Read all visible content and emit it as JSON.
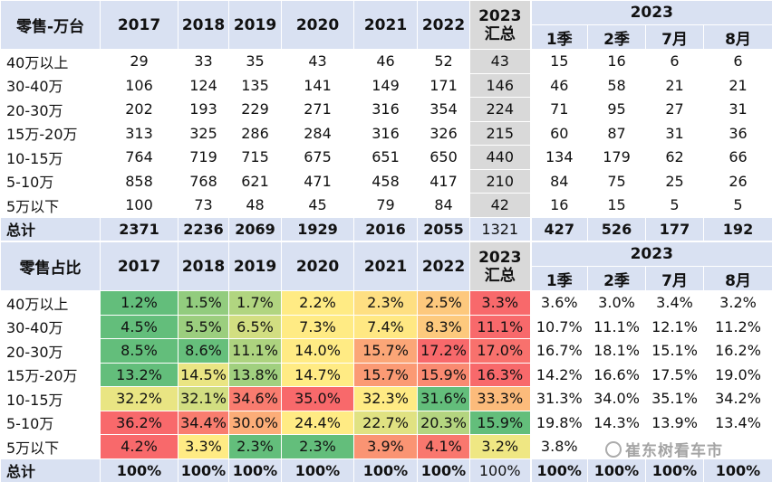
{
  "top": {
    "corner": "零售-万台",
    "years": [
      2017,
      2018,
      2019,
      2020,
      2021,
      2022
    ],
    "summary": [
      "2023",
      "汇总"
    ],
    "group": "2023",
    "sub": [
      "1季",
      "2季",
      "7月",
      "8月"
    ],
    "rows": [
      {
        "label": "40万以上",
        "cells": [
          29,
          33,
          35,
          43,
          46,
          52,
          43,
          15,
          16,
          6,
          6
        ]
      },
      {
        "label": "30-40万",
        "cells": [
          106,
          124,
          135,
          141,
          149,
          171,
          146,
          46,
          58,
          21,
          21
        ]
      },
      {
        "label": "20-30万",
        "cells": [
          202,
          193,
          229,
          271,
          316,
          354,
          224,
          71,
          95,
          27,
          31
        ]
      },
      {
        "label": "15万-20万",
        "cells": [
          313,
          325,
          286,
          284,
          316,
          326,
          215,
          60,
          87,
          31,
          36
        ]
      },
      {
        "label": "10-15万",
        "cells": [
          764,
          719,
          715,
          675,
          651,
          650,
          440,
          134,
          179,
          62,
          66
        ]
      },
      {
        "label": "5-10万",
        "cells": [
          858,
          768,
          621,
          471,
          458,
          417,
          210,
          84,
          75,
          25,
          26
        ]
      },
      {
        "label": "5万以下",
        "cells": [
          100,
          73,
          48,
          45,
          79,
          84,
          42,
          16,
          15,
          5,
          5
        ]
      },
      {
        "label": "总计",
        "cells": [
          2371,
          2236,
          2069,
          1929,
          2016,
          2055,
          1321,
          427,
          526,
          177,
          192
        ]
      }
    ]
  },
  "bottom": {
    "corner": "零售占比",
    "years": [
      2017,
      2018,
      2019,
      2020,
      2021,
      2022
    ],
    "summary": [
      "2023",
      "汇总"
    ],
    "group": "2023",
    "sub": [
      "1季",
      "2季",
      "7月",
      "8月"
    ],
    "rows": [
      {
        "label": "40万以上",
        "cells": [
          "1.2%",
          "1.5%",
          "1.7%",
          "2.2%",
          "2.3%",
          "2.5%",
          "3.3%",
          "3.6%",
          "3.0%",
          "3.4%",
          "3.2%"
        ]
      },
      {
        "label": "30-40万",
        "cells": [
          "4.5%",
          "5.5%",
          "6.5%",
          "7.3%",
          "7.4%",
          "8.3%",
          "11.1%",
          "10.7%",
          "11.1%",
          "12.1%",
          "11.2%"
        ]
      },
      {
        "label": "20-30万",
        "cells": [
          "8.5%",
          "8.6%",
          "11.1%",
          "14.0%",
          "15.7%",
          "17.2%",
          "17.0%",
          "16.7%",
          "18.1%",
          "15.1%",
          "16.2%"
        ]
      },
      {
        "label": "15万-20万",
        "cells": [
          "13.2%",
          "14.5%",
          "13.8%",
          "14.7%",
          "15.7%",
          "15.9%",
          "16.3%",
          "14.2%",
          "16.6%",
          "17.5%",
          "19.0%"
        ]
      },
      {
        "label": "10-15万",
        "cells": [
          "32.2%",
          "32.1%",
          "34.6%",
          "35.0%",
          "32.3%",
          "31.6%",
          "33.3%",
          "31.3%",
          "34.0%",
          "35.1%",
          "34.2%"
        ]
      },
      {
        "label": "5-10万",
        "cells": [
          "36.2%",
          "34.4%",
          "30.0%",
          "24.4%",
          "22.7%",
          "20.3%",
          "15.9%",
          "19.8%",
          "14.3%",
          "13.9%",
          "13.4%"
        ]
      },
      {
        "label": "5万以下",
        "cells": [
          "4.2%",
          "3.3%",
          "2.3%",
          "2.3%",
          "3.9%",
          "4.1%",
          "3.2%",
          "3.8%",
          null,
          null,
          null
        ]
      },
      {
        "label": "总计",
        "cells": [
          "100%",
          "100%",
          "100%",
          "100%",
          "100%",
          "100%",
          "100%",
          "100%",
          "100%",
          "100%",
          "100%"
        ]
      }
    ]
  },
  "watermark": "崔东树看车市"
}
